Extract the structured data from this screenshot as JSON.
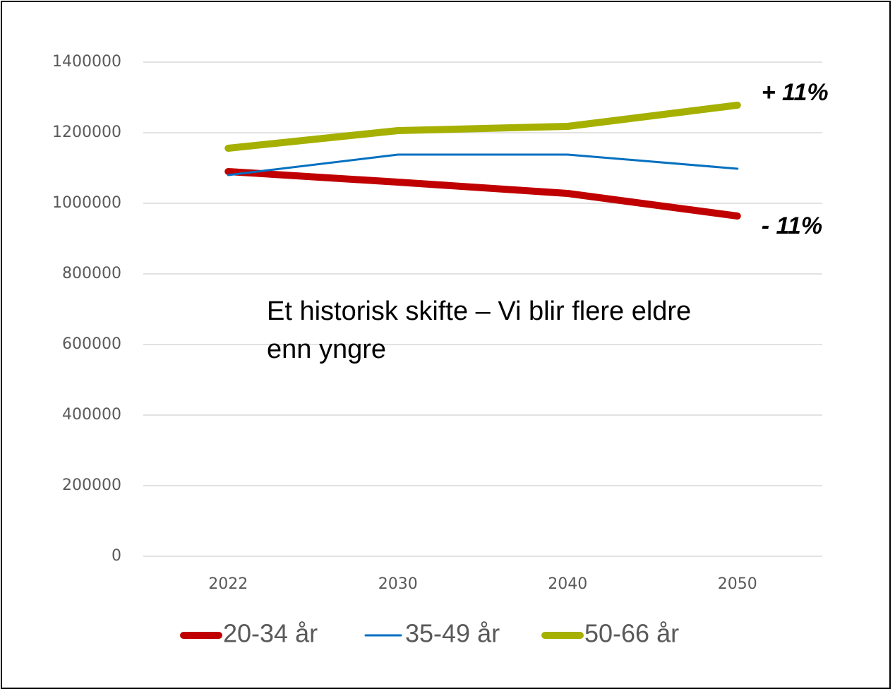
{
  "chart_data": {
    "type": "line",
    "categories": [
      "2022",
      "2030",
      "2040",
      "2050"
    ],
    "series": [
      {
        "name": "20-34 år",
        "color": "#c00000",
        "width": 10,
        "values": [
          1090000,
          1060000,
          1028000,
          964000
        ]
      },
      {
        "name": "35-49 år",
        "color": "#0070c0",
        "width": 3,
        "values": [
          1080000,
          1138000,
          1138000,
          1098000
        ]
      },
      {
        "name": "50-66 år",
        "color": "#a5b000",
        "width": 10,
        "values": [
          1156000,
          1206000,
          1218000,
          1278000
        ]
      }
    ],
    "ylim": [
      0,
      1400000
    ],
    "yticks": [
      0,
      200000,
      400000,
      600000,
      800000,
      1000000,
      1200000,
      1400000
    ],
    "grid": true,
    "legend": "bottom",
    "annotations": [
      "+ 11%",
      "- 11%",
      "Et historisk skifte – Vi blir flere eldre enn yngre"
    ]
  }
}
